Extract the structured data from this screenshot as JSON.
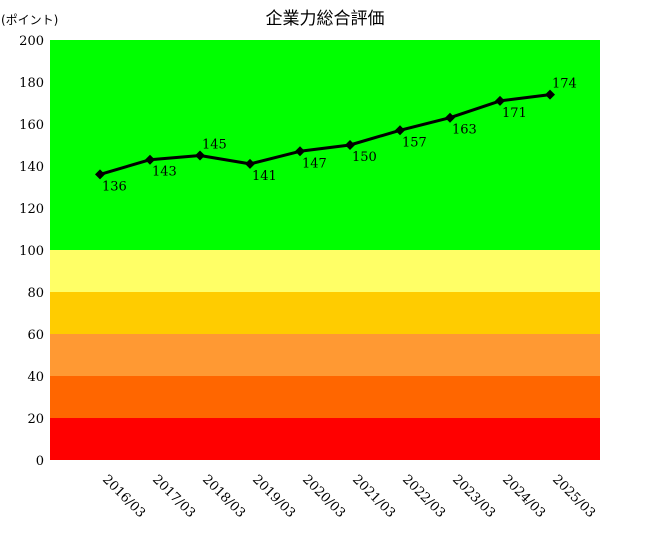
{
  "chart_data": {
    "type": "line",
    "title": "企業力総合評価",
    "ylabel": "(ポイント)",
    "xlabel": "",
    "ylim": [
      0,
      200
    ],
    "yticks": [
      0,
      20,
      40,
      60,
      80,
      100,
      120,
      140,
      160,
      180,
      200
    ],
    "categories": [
      "2016/03",
      "2017/03",
      "2018/03",
      "2019/03",
      "2020/03",
      "2021/03",
      "2022/03",
      "2023/03",
      "2024/03",
      "2025/03"
    ],
    "series": [
      {
        "values": [
          136,
          143,
          145,
          141,
          147,
          150,
          157,
          163,
          171,
          174
        ],
        "color": "#000000"
      }
    ],
    "bands": [
      {
        "from": 0,
        "to": 20,
        "color": "#ff0000"
      },
      {
        "from": 20,
        "to": 40,
        "color": "#ff6600"
      },
      {
        "from": 40,
        "to": 60,
        "color": "#ff9933"
      },
      {
        "from": 60,
        "to": 80,
        "color": "#ffcc00"
      },
      {
        "from": 80,
        "to": 100,
        "color": "#ffff66"
      },
      {
        "from": 100,
        "to": 200,
        "color": "#00ff00"
      }
    ],
    "grid": false,
    "legend": "none"
  }
}
